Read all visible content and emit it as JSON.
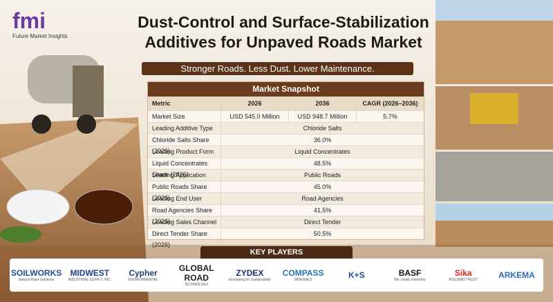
{
  "logo": {
    "mark": "fmi",
    "name": "Future Market Insights"
  },
  "header": {
    "title_line1": "Dust-Control and Surface-Stabilization",
    "title_line2": "Additives for Unpaved Roads Market",
    "tagline": "Stronger Roads. Less Dust. Lower Maintenance."
  },
  "table": {
    "title": "Market Snapshot",
    "columns": [
      "Metric",
      "2026",
      "2036",
      "CAGR (2026–2036)"
    ],
    "rows": [
      [
        "Market Size",
        "USD 545.0 Million",
        "USD 948.7 Million",
        "5.7%"
      ],
      [
        "Leading Additive Type",
        "Chloride Salts"
      ],
      [
        "Chloride Salts Share (2026)",
        "36.0%"
      ],
      [
        "Leading Product Form",
        "Liquid Concentrates"
      ],
      [
        "Liquid Concentrates Share (2026)",
        "48.5%"
      ],
      [
        "Leading Application",
        "Public Roads"
      ],
      [
        "Public Roads Share (2026)",
        "45.0%"
      ],
      [
        "Leading End User",
        "Road Agencies"
      ],
      [
        "Road Agencies Share (2026)",
        "41.5%"
      ],
      [
        "Leading Sales Channel",
        "Direct Tender"
      ],
      [
        "Direct Tender Share (2026)",
        "50.5%"
      ]
    ]
  },
  "players": {
    "title": "KEY PLAYERS",
    "logos": [
      {
        "name": "SOILWORKS",
        "sub": "Natural Road Solutions",
        "color": "#1d4f91"
      },
      {
        "name": "MIDWEST",
        "sub": "INDUSTRIAL SUPPLY, INC.",
        "color": "#1c3f8c"
      },
      {
        "name": "Cypher",
        "sub": "ENVIRONMENTAL",
        "color": "#1b3d6e"
      },
      {
        "name": "GLOBAL ROAD",
        "sub": "TECHNOLOGY",
        "color": "#222222"
      },
      {
        "name": "ZYDEX",
        "sub": "Innovating for Sustainability",
        "color": "#1a2f7a"
      },
      {
        "name": "COMPASS",
        "sub": "MINERALS",
        "color": "#2a6fb5"
      },
      {
        "name": "K+S",
        "sub": null,
        "color": "#1f4f9c"
      },
      {
        "name": "BASF",
        "sub": "We create chemistry",
        "color": "#111111"
      },
      {
        "name": "Sika",
        "sub": "BUILDING TRUST",
        "color": "#d52b1e"
      },
      {
        "name": "ARKEMA",
        "sub": null,
        "color": "#2a6db0"
      }
    ]
  }
}
